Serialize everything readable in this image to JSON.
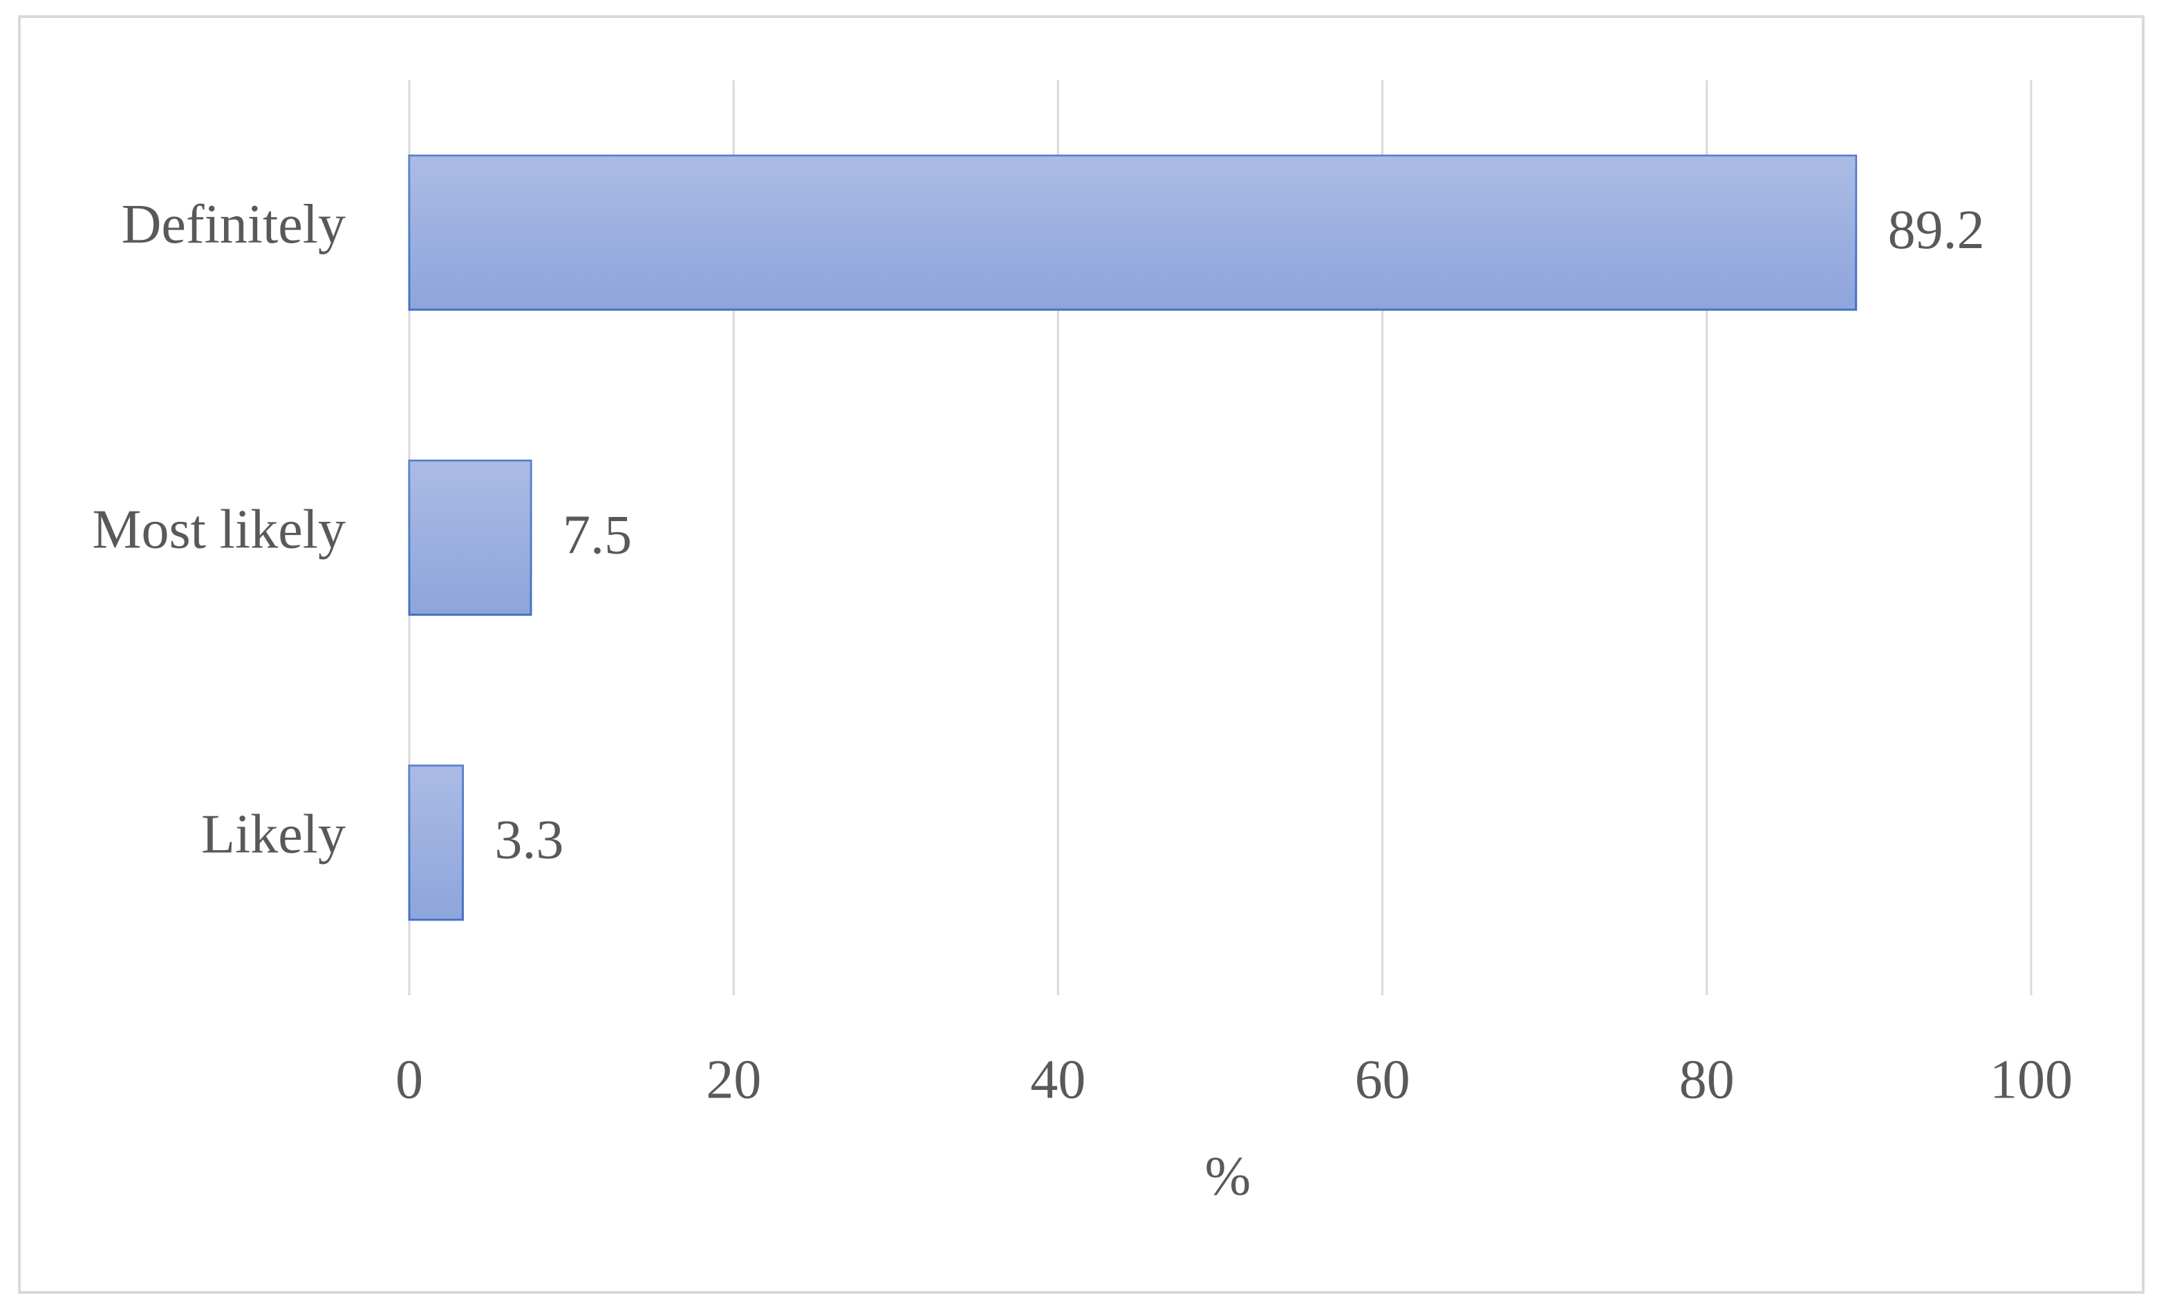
{
  "chart_data": {
    "type": "barh",
    "categories": [
      "Definitely",
      "Most likely",
      "Likely"
    ],
    "values": [
      89.2,
      7.5,
      3.3
    ],
    "color": "#8ea5dc",
    "edge_color": "#4472c4",
    "x_label": "%",
    "xlim": [
      0,
      100
    ],
    "xticks": [
      0,
      20,
      40,
      60,
      80,
      100
    ],
    "grid": true
  }
}
